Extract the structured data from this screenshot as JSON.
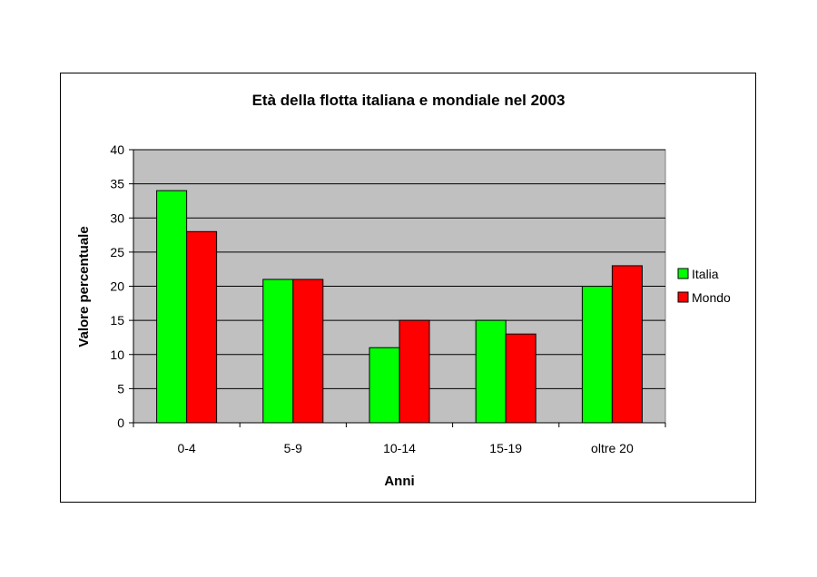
{
  "chart_data": {
    "type": "bar",
    "title": "Età della flotta italiana e mondiale nel 2003",
    "xlabel": "Anni",
    "ylabel": "Valore percentuale",
    "categories": [
      "0-4",
      "5-9",
      "10-14",
      "15-19",
      "oltre 20"
    ],
    "series": [
      {
        "name": "Italia",
        "color": "#00ff00",
        "values": [
          34,
          21,
          11,
          15,
          20
        ]
      },
      {
        "name": "Mondo",
        "color": "#ff0000",
        "values": [
          28,
          21,
          15,
          13,
          23
        ]
      }
    ],
    "ylim": [
      0,
      40
    ],
    "yticks": [
      0,
      5,
      10,
      15,
      20,
      25,
      30,
      35,
      40
    ],
    "grid": true,
    "plot_background": "#c0c0c0",
    "legend_position": "right"
  }
}
